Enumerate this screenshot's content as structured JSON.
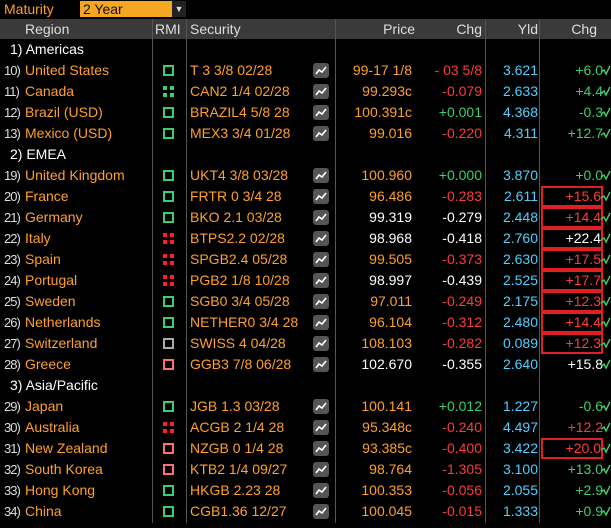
{
  "toolbar": {
    "maturity_label": "Maturity",
    "maturity_value": "2 Year"
  },
  "columns": {
    "region": "Region",
    "rmi": "RMI",
    "security": "Security",
    "price": "Price",
    "chg": "Chg",
    "yld": "Yld",
    "chg2": "Chg"
  },
  "groups": [
    {
      "label": "1) Americas",
      "rows": [
        {
          "num": "10)",
          "region": "United States",
          "rmi": "green-dashed",
          "security": "T 3 3/8 02/28",
          "price": "99-17 1/8",
          "price_color": "orange",
          "chg": "- 03 5/8",
          "chg_sign": "neg",
          "yld": "3.621",
          "chg2": "+6.0",
          "chg2_sign": "pos",
          "boxed": false
        },
        {
          "num": "11)",
          "region": "Canada",
          "rmi": "green-solid",
          "security": "CAN2 1/4 02/28",
          "price": "99.293c",
          "price_color": "orange",
          "chg": "-0.079",
          "chg_sign": "neg",
          "yld": "2.633",
          "chg2": "+4.4",
          "chg2_sign": "pos",
          "boxed": false
        },
        {
          "num": "12)",
          "region": "Brazil (USD)",
          "rmi": "green-dashed",
          "security": "BRAZIL4 5/8 28",
          "price": "100.391c",
          "price_color": "orange",
          "chg": "+0.001",
          "chg_sign": "pos",
          "yld": "4.368",
          "chg2": "-0.3",
          "chg2_sign": "pos",
          "boxed": false
        },
        {
          "num": "13)",
          "region": "Mexico (USD)",
          "rmi": "green-dashed",
          "security": "MEX3 3/4 01/28",
          "price": "99.016",
          "price_color": "orange",
          "chg": "-0.220",
          "chg_sign": "neg",
          "yld": "4.311",
          "chg2": "+12.7",
          "chg2_sign": "pos",
          "boxed": false
        }
      ]
    },
    {
      "label": "2) EMEA",
      "rows": [
        {
          "num": "19)",
          "region": "United Kingdom",
          "rmi": "green-dashed",
          "security": "UKT4 3/8 03/28",
          "price": "100.960",
          "price_color": "orange",
          "chg": "+0.000",
          "chg_sign": "pos",
          "yld": "3.870",
          "chg2": "+0.0",
          "chg2_sign": "pos",
          "boxed": false
        },
        {
          "num": "20)",
          "region": "France",
          "rmi": "green-dashed",
          "security": "FRTR 0 3/4 28",
          "price": "96.486",
          "price_color": "orange",
          "chg": "-0.283",
          "chg_sign": "neg",
          "yld": "2.611",
          "chg2": "+15.6",
          "chg2_sign": "neg",
          "boxed": true
        },
        {
          "num": "21)",
          "region": "Germany",
          "rmi": "green-dashed",
          "security": "BKO 2.1 03/28",
          "price": "99.319",
          "price_color": "white",
          "chg": "-0.279",
          "chg_sign": "wht",
          "yld": "2.448",
          "chg2": "+14.4",
          "chg2_sign": "neg",
          "boxed": true
        },
        {
          "num": "22)",
          "region": "Italy",
          "rmi": "red-solid",
          "security": "BTPS2.2 02/28",
          "price": "98.968",
          "price_color": "white",
          "chg": "-0.418",
          "chg_sign": "wht",
          "yld": "2.760",
          "chg2": "+22.4",
          "chg2_sign": "wht",
          "boxed": true
        },
        {
          "num": "23)",
          "region": "Spain",
          "rmi": "red-solid",
          "security": "SPGB2.4 05/28",
          "price": "99.505",
          "price_color": "orange",
          "chg": "-0.373",
          "chg_sign": "neg",
          "yld": "2.630",
          "chg2": "+17.5",
          "chg2_sign": "neg",
          "boxed": true
        },
        {
          "num": "24)",
          "region": "Portugal",
          "rmi": "red-solid",
          "security": "PGB2 1/8 10/28",
          "price": "98.997",
          "price_color": "white",
          "chg": "-0.439",
          "chg_sign": "wht",
          "yld": "2.525",
          "chg2": "+17.7",
          "chg2_sign": "neg",
          "boxed": true
        },
        {
          "num": "25)",
          "region": "Sweden",
          "rmi": "green-dashed",
          "security": "SGB0 3/4 05/28",
          "price": "97.011",
          "price_color": "orange",
          "chg": "-0.249",
          "chg_sign": "neg",
          "yld": "2.175",
          "chg2": "+12.3",
          "chg2_sign": "neg",
          "boxed": true
        },
        {
          "num": "26)",
          "region": "Netherlands",
          "rmi": "green-dashed",
          "security": "NETHER0 3/4 28",
          "price": "96.104",
          "price_color": "orange",
          "chg": "-0.312",
          "chg_sign": "neg",
          "yld": "2.480",
          "chg2": "+14.4",
          "chg2_sign": "neg",
          "boxed": true
        },
        {
          "num": "27)",
          "region": "Switzerland",
          "rmi": "white-dashed",
          "security": "SWISS 4 04/28",
          "price": "108.103",
          "price_color": "orange",
          "chg": "-0.282",
          "chg_sign": "neg",
          "yld": "0.089",
          "chg2": "+12.3",
          "chg2_sign": "neg",
          "boxed": true
        },
        {
          "num": "28)",
          "region": "Greece",
          "rmi": "red-dashed",
          "security": "GGB3 7/8 06/28",
          "price": "102.670",
          "price_color": "white",
          "chg": "-0.355",
          "chg_sign": "wht",
          "yld": "2.640",
          "chg2": "+15.8",
          "chg2_sign": "wht",
          "boxed": false
        }
      ]
    },
    {
      "label": "3) Asia/Pacific",
      "rows": [
        {
          "num": "29)",
          "region": "Japan",
          "rmi": "green-dashed",
          "security": "JGB 1.3 03/28",
          "price": "100.141",
          "price_color": "orange",
          "chg": "+0.012",
          "chg_sign": "pos",
          "yld": "1.227",
          "chg2": "-0.6",
          "chg2_sign": "pos",
          "boxed": false
        },
        {
          "num": "30)",
          "region": "Australia",
          "rmi": "red-solid",
          "security": "ACGB 2 1/4 28",
          "price": "95.348c",
          "price_color": "orange",
          "chg": "-0.240",
          "chg_sign": "neg",
          "yld": "4.497",
          "chg2": "+12.2",
          "chg2_sign": "neg",
          "boxed": false
        },
        {
          "num": "31)",
          "region": "New Zealand",
          "rmi": "red-dashed",
          "security": "NZGB 0 1/4 28",
          "price": "93.385c",
          "price_color": "orange",
          "chg": "-0.400",
          "chg_sign": "neg",
          "yld": "3.422",
          "chg2": "+20.0",
          "chg2_sign": "neg",
          "boxed": true
        },
        {
          "num": "32)",
          "region": "South Korea",
          "rmi": "red-dashed",
          "security": "KTB2 1/4 09/27",
          "price": "98.764",
          "price_color": "orange",
          "chg": "-1.305",
          "chg_sign": "neg",
          "yld": "3.100",
          "chg2": "+13.0",
          "chg2_sign": "pos",
          "boxed": false
        },
        {
          "num": "33)",
          "region": "Hong Kong",
          "rmi": "green-dashed",
          "security": "HKGB 2.23 28",
          "price": "100.353",
          "price_color": "orange",
          "chg": "-0.056",
          "chg_sign": "neg",
          "yld": "2.055",
          "chg2": "+2.9",
          "chg2_sign": "pos",
          "boxed": false
        },
        {
          "num": "34)",
          "region": "China",
          "rmi": "green-dashed",
          "security": "CGB1.36 12/27",
          "price": "100.045",
          "price_color": "orange",
          "chg": "-0.015",
          "chg_sign": "neg",
          "yld": "1.333",
          "chg2": "+0.9",
          "chg2_sign": "pos",
          "boxed": false
        }
      ]
    }
  ]
}
